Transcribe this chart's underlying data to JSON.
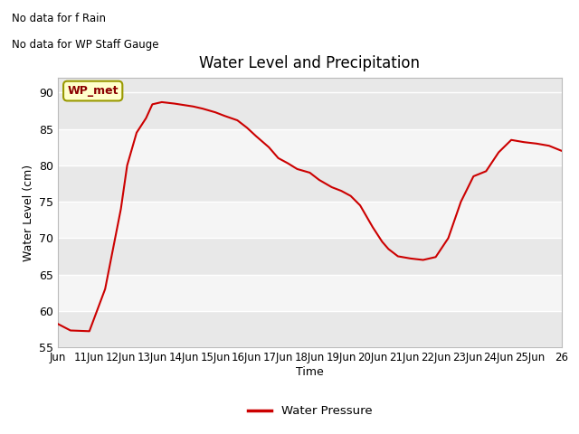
{
  "title": "Water Level and Precipitation",
  "xlabel": "Time",
  "ylabel": "Water Level (cm)",
  "ylim": [
    55,
    92
  ],
  "yticks": [
    55,
    60,
    65,
    70,
    75,
    80,
    85,
    90
  ],
  "x_labels": [
    "Jun",
    "11Jun",
    "12Jun",
    "13Jun",
    "14Jun",
    "15Jun",
    "16Jun",
    "17Jun",
    "18Jun",
    "19Jun",
    "20Jun",
    "21Jun",
    "22Jun",
    "23Jun",
    "24Jun",
    "25Jun",
    "26"
  ],
  "annotations_top_left": [
    "No data for f Rain",
    "No data for WP Staff Gauge"
  ],
  "wp_met_label": "WP_met",
  "wp_met_box_facecolor": "#ffffcc",
  "wp_met_box_edgecolor": "#999900",
  "wp_met_text_color": "#8B0000",
  "line_color": "#cc0000",
  "line_width": 1.5,
  "fig_bg_color": "#ffffff",
  "plot_bg_color": "#e8e8e8",
  "band_color_light": "#e8e8e8",
  "band_color_white": "#f5f5f5",
  "grid_color": "#ffffff",
  "legend_label": "Water Pressure",
  "legend_line_color": "#cc0000",
  "x_data": [
    0,
    0.4,
    1.0,
    1.5,
    2.0,
    2.2,
    2.5,
    2.8,
    3.0,
    3.3,
    3.7,
    4.0,
    4.3,
    4.6,
    5.0,
    5.3,
    5.7,
    6.0,
    6.3,
    6.7,
    7.0,
    7.3,
    7.6,
    8.0,
    8.3,
    8.7,
    9.0,
    9.3,
    9.6,
    9.8,
    10.0,
    10.15,
    10.3,
    10.5,
    10.8,
    11.2,
    11.6,
    12.0,
    12.4,
    12.8,
    13.2,
    13.6,
    14.0,
    14.4,
    14.8,
    15.2,
    15.6,
    16.0
  ],
  "y_data": [
    58.2,
    57.3,
    57.2,
    63.0,
    74.0,
    80.0,
    84.5,
    86.5,
    88.4,
    88.7,
    88.5,
    88.3,
    88.1,
    87.8,
    87.3,
    86.8,
    86.2,
    85.2,
    84.0,
    82.5,
    81.0,
    80.3,
    79.5,
    79.0,
    78.0,
    77.0,
    76.5,
    75.8,
    74.5,
    73.0,
    71.5,
    70.5,
    69.5,
    68.5,
    67.5,
    67.2,
    67.0,
    67.4,
    70.0,
    75.0,
    78.5,
    79.2,
    81.8,
    83.5,
    83.2,
    83.0,
    82.7,
    82.0
  ]
}
